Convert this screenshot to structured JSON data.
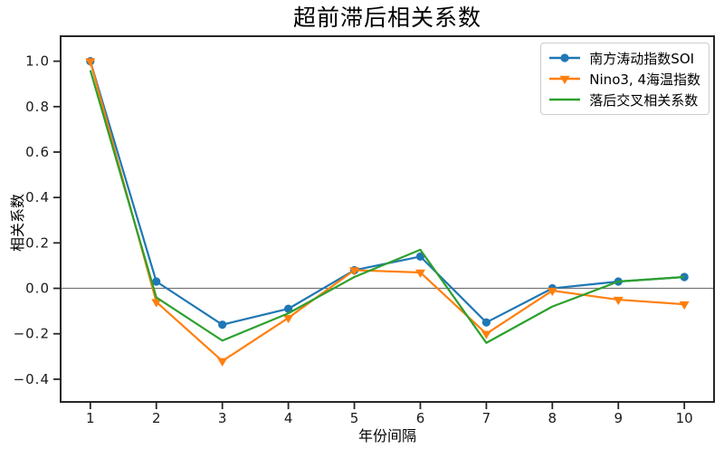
{
  "chart_data": {
    "type": "line",
    "title": "超前滞后相关系数",
    "xlabel": "年份间隔",
    "ylabel": "相关系数",
    "x": [
      1,
      2,
      3,
      4,
      5,
      6,
      7,
      8,
      9,
      10
    ],
    "series": [
      {
        "name": "南方涛动指数SOI",
        "color": "#1f77b4",
        "marker": "circle",
        "values": [
          1.0,
          0.03,
          -0.16,
          -0.09,
          0.08,
          0.14,
          -0.15,
          0.0,
          0.03,
          0.05
        ]
      },
      {
        "name": "Nino3, 4海温指数",
        "color": "#ff7f0e",
        "marker": "triangle-down",
        "values": [
          1.0,
          -0.06,
          -0.32,
          -0.13,
          0.08,
          0.07,
          -0.2,
          -0.01,
          -0.05,
          -0.07
        ]
      },
      {
        "name": "落后交叉相关系数",
        "color": "#2ca02c",
        "marker": "none",
        "values": [
          0.96,
          -0.04,
          -0.23,
          -0.11,
          0.05,
          0.17,
          -0.24,
          -0.08,
          0.03,
          0.05
        ]
      }
    ],
    "xlim": [
      0.55,
      10.45
    ],
    "ylim": [
      -0.5,
      1.11
    ],
    "xticks": [
      1,
      2,
      3,
      4,
      5,
      6,
      7,
      8,
      9,
      10
    ],
    "xtick_labels": [
      "1",
      "2",
      "3",
      "4",
      "5",
      "6",
      "7",
      "8",
      "9",
      "10"
    ],
    "yticks": [
      1.0,
      0.8,
      0.6,
      0.4,
      0.2,
      0.0,
      -0.2,
      -0.4
    ],
    "ytick_labels": [
      "1.0",
      "0.8",
      "0.6",
      "0.4",
      "0.2",
      "0.0",
      "−0.2",
      "−0.4"
    ],
    "grid": false,
    "zero_line": true,
    "legend_position": "upper right",
    "colors": {
      "background": "#ffffff",
      "spine": "#262626",
      "tick_label": "#1a1a1a",
      "zero_line": "#757575",
      "legend_border": "#cccccc"
    }
  }
}
